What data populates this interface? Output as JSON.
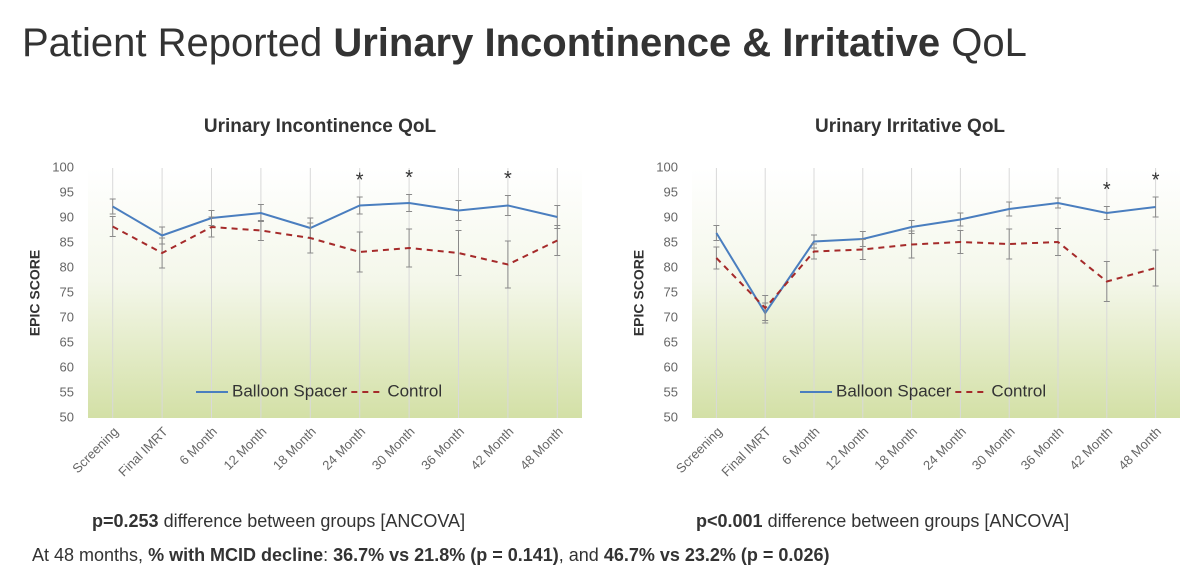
{
  "title": [
    {
      "text": "Patient Reported ",
      "bold": false
    },
    {
      "text": "Urinary Incontinence & Irritative",
      "bold": true
    },
    {
      "text": " QoL",
      "bold": false
    }
  ],
  "chart_data": [
    {
      "type": "line",
      "title": "Urinary Incontinence QoL",
      "y_label": "EPIC SCORE",
      "categories": [
        "Screening",
        "Final IMRT",
        "6 Month",
        "12 Month",
        "18 Month",
        "24 Month",
        "30 Month",
        "36 Month",
        "42 Month",
        "48 Month"
      ],
      "series": [
        {
          "name": "Balloon Spacer",
          "color": "#4a7ebf",
          "dash": false,
          "values": [
            92.3,
            86.5,
            90,
            91,
            88,
            92.5,
            93,
            91.5,
            92.5,
            90.2
          ],
          "errors": [
            1.5,
            1.7,
            1.5,
            1.7,
            2,
            1.7,
            1.7,
            2,
            2,
            2.3
          ]
        },
        {
          "name": "Control",
          "color": "#a52a2a",
          "dash": true,
          "values": [
            88.3,
            83,
            88.2,
            87.5,
            86,
            83.2,
            84,
            83,
            80.7,
            85.5
          ],
          "errors": [
            2,
            3,
            2,
            2,
            3,
            4,
            3.8,
            4.5,
            4.7,
            3
          ]
        }
      ],
      "annotations": [
        {
          "category": "24 Month",
          "text": "*"
        },
        {
          "category": "30 Month",
          "text": "*"
        },
        {
          "category": "42 Month",
          "text": "*"
        }
      ],
      "ylim": [
        50,
        100
      ],
      "yticks": [
        50,
        55,
        60,
        65,
        70,
        75,
        80,
        85,
        90,
        95,
        100
      ],
      "grid": true,
      "legend": "bottom",
      "note": [
        {
          "text": "p=0.253",
          "bold": true
        },
        {
          "text": " difference between groups [ANCOVA]",
          "bold": false
        }
      ]
    },
    {
      "type": "line",
      "title": "Urinary Irritative QoL",
      "y_label": "EPIC SCORE",
      "categories": [
        "Screening",
        "Final IMRT",
        "6 Month",
        "12 Month",
        "18 Month",
        "24 Month",
        "30 Month",
        "36 Month",
        "42 Month",
        "48 Month"
      ],
      "series": [
        {
          "name": "Balloon Spacer",
          "color": "#4a7ebf",
          "dash": false,
          "values": [
            87,
            71,
            85.3,
            85.8,
            88.2,
            89.7,
            91.8,
            93,
            91,
            92.2
          ],
          "errors": [
            1.5,
            2,
            1.3,
            1.5,
            1.3,
            1.3,
            1.4,
            1,
            1.3,
            2
          ]
        },
        {
          "name": "Control",
          "color": "#a52a2a",
          "dash": true,
          "values": [
            82,
            72,
            83.3,
            83.7,
            84.7,
            85.2,
            84.8,
            85.2,
            77.3,
            80
          ],
          "errors": [
            2.2,
            2.5,
            1.5,
            2,
            2.7,
            2.3,
            3,
            2.7,
            4,
            3.6
          ]
        }
      ],
      "annotations": [
        {
          "category": "42 Month",
          "text": "*"
        },
        {
          "category": "48 Month",
          "text": "*"
        }
      ],
      "ylim": [
        50,
        100
      ],
      "yticks": [
        50,
        55,
        60,
        65,
        70,
        75,
        80,
        85,
        90,
        95,
        100
      ],
      "grid": true,
      "legend": "bottom",
      "note": [
        {
          "text": "p<0.001",
          "bold": true
        },
        {
          "text": " difference between groups [ANCOVA]",
          "bold": false
        }
      ]
    }
  ],
  "footnote": [
    {
      "text": "At 48 months, ",
      "bold": false
    },
    {
      "text": "% with MCID decline",
      "bold": true
    },
    {
      "text": ":  ",
      "bold": false
    },
    {
      "text": "36.7% vs 21.8% (p = 0.141)",
      "bold": true
    },
    {
      "text": ", and ",
      "bold": false
    },
    {
      "text": "46.7% vs 23.2% (p = 0.026)",
      "bold": true
    }
  ]
}
